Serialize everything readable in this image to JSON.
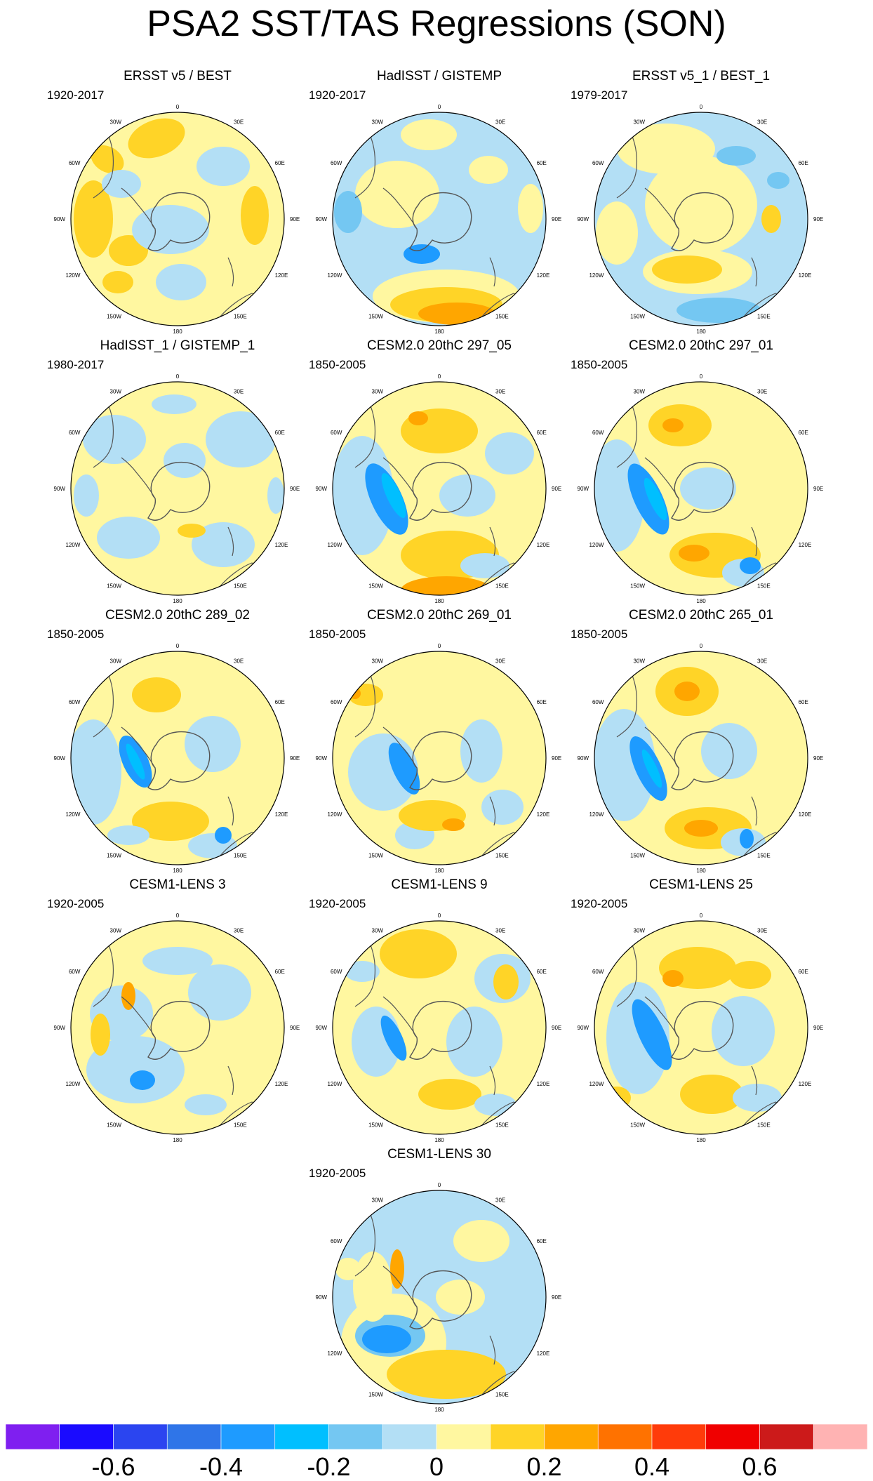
{
  "title": "PSA2 SST/TAS Regressions (SON)",
  "panels": [
    {
      "title": "ERSST v5 / BEST",
      "period": "1920-2017"
    },
    {
      "title": "HadISST / GISTEMP",
      "period": "1920-2017"
    },
    {
      "title": "ERSST v5_1 / BEST_1",
      "period": "1979-2017"
    },
    {
      "title": "HadISST_1 / GISTEMP_1",
      "period": "1980-2017"
    },
    {
      "title": "CESM2.0 20thC 297_05",
      "period": "1850-2005"
    },
    {
      "title": "CESM2.0 20thC 297_01",
      "period": "1850-2005"
    },
    {
      "title": "CESM2.0 20thC 289_02",
      "period": "1850-2005"
    },
    {
      "title": "CESM2.0 20thC 269_01",
      "period": "1850-2005"
    },
    {
      "title": "CESM2.0 20thC 265_01",
      "period": "1850-2005"
    },
    {
      "title": "CESM1-LENS 3",
      "period": "1920-2005"
    },
    {
      "title": "CESM1-LENS 9",
      "period": "1920-2005"
    },
    {
      "title": "CESM1-LENS 25",
      "period": "1920-2005"
    },
    {
      "title": "CESM1-LENS 30",
      "period": "1920-2005"
    }
  ],
  "longitude_labels": [
    "0",
    "30E",
    "60E",
    "90E",
    "120E",
    "150E",
    "180",
    "150W",
    "120W",
    "90W",
    "60W",
    "30W"
  ],
  "colorbar": {
    "colors": [
      "#7f1ff0",
      "#1a0bff",
      "#2b45f0",
      "#2f75e8",
      "#1e9bff",
      "#00bfff",
      "#74c7f2",
      "#b3dff5",
      "#fff7a0",
      "#ffd427",
      "#ffa600",
      "#ff7200",
      "#ff3b0a",
      "#f00000",
      "#cc1a1a",
      "#ffb3b3"
    ],
    "tick_labels": [
      "-0.6",
      "-0.4",
      "-0.2",
      "0",
      "0.2",
      "0.4",
      "0.6"
    ]
  }
}
